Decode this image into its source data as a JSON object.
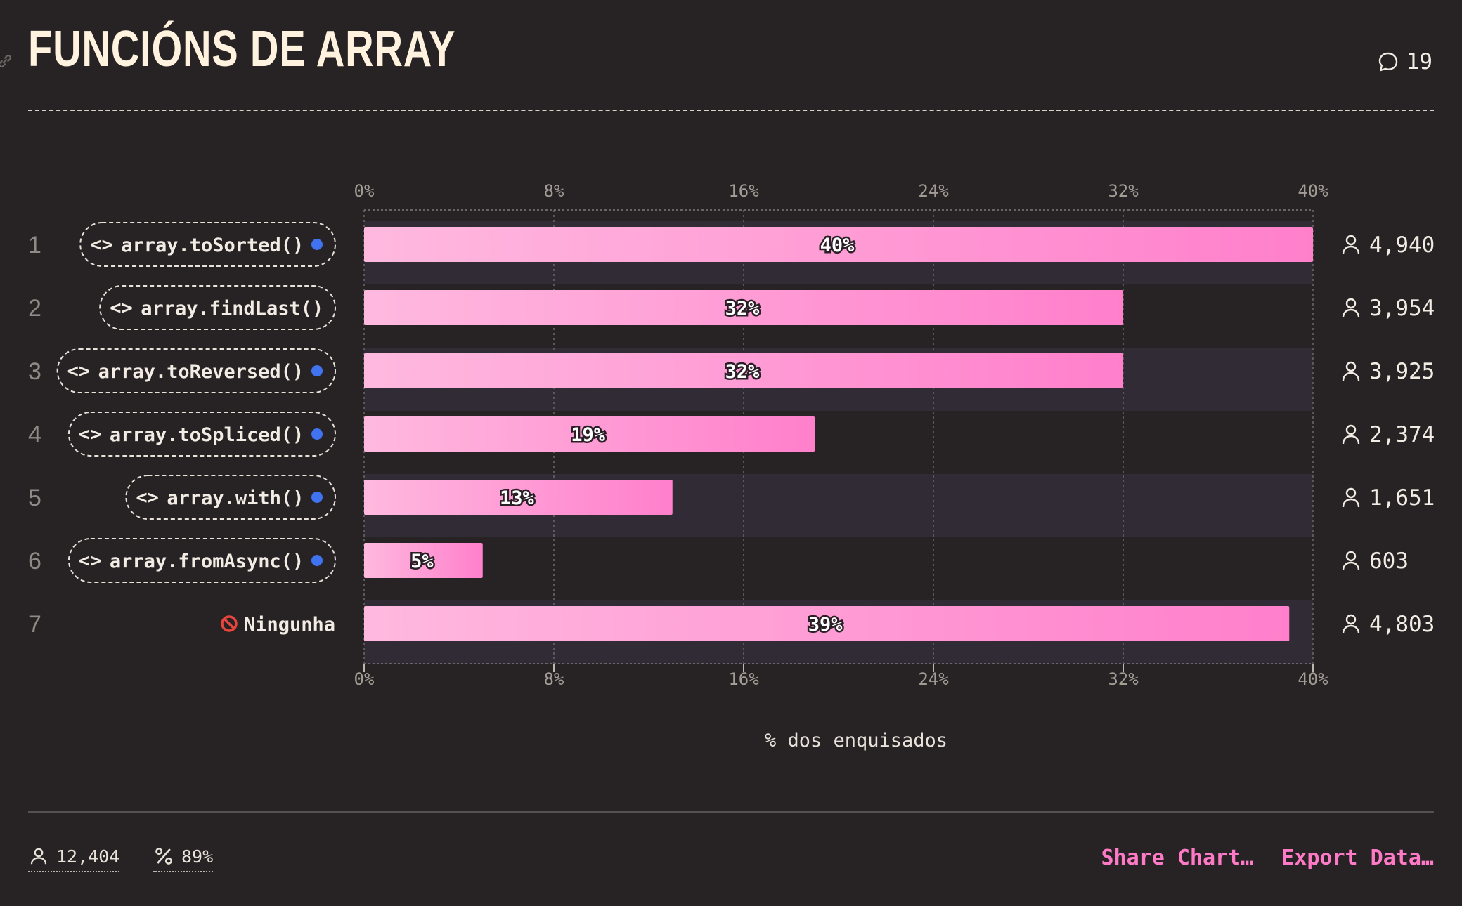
{
  "header": {
    "title": "FUNCIÓNS DE ARRAY",
    "comments_count": "19"
  },
  "chart_data": {
    "type": "bar",
    "orientation": "horizontal",
    "categories": [
      "array.toSorted()",
      "array.findLast()",
      "array.toReversed()",
      "array.toSpliced()",
      "array.with()",
      "array.fromAsync()",
      "Ningunha"
    ],
    "ranks": [
      "1",
      "2",
      "3",
      "4",
      "5",
      "6",
      "7"
    ],
    "values": [
      40,
      32,
      32,
      19,
      13,
      5,
      39
    ],
    "value_labels": [
      "40%",
      "32%",
      "32%",
      "19%",
      "13%",
      "5%",
      "39%"
    ],
    "counts": [
      "4,940",
      "3,954",
      "3,925",
      "2,374",
      "1,651",
      "603",
      "4,803"
    ],
    "new_badge": [
      true,
      false,
      true,
      true,
      true,
      true,
      false
    ],
    "row_kind": [
      "feature",
      "feature",
      "feature",
      "feature",
      "feature",
      "feature",
      "none"
    ],
    "xlim": [
      0,
      40
    ],
    "x_ticks": [
      "0%",
      "8%",
      "16%",
      "24%",
      "32%",
      "40%"
    ],
    "xlabel": "% dos enquisados",
    "grid": true,
    "colors": {
      "bar_start": "#ffb9df",
      "bar_end": "#ff7fcb",
      "alt_row": "#302b34",
      "badge": "#3f73f0",
      "none_icon": "#e8453c"
    }
  },
  "footer": {
    "respondents": "12,404",
    "percent": "89%",
    "share_label": "Share Chart…",
    "export_label": "Export Data…"
  }
}
